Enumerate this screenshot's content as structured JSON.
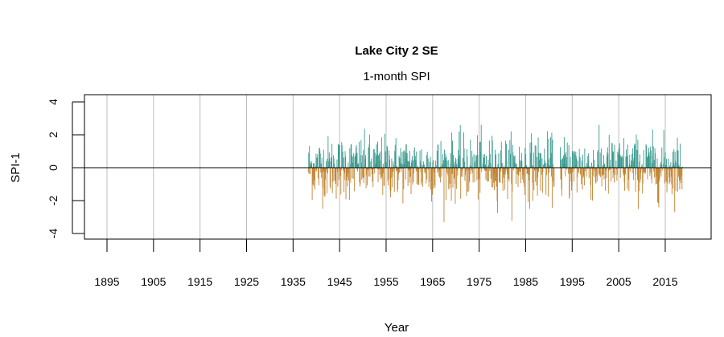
{
  "chart_data": {
    "type": "bar",
    "title": "Lake City 2 SE",
    "subtitle": "1-month SPI",
    "xlabel": "Year",
    "ylabel": "SPI-1",
    "xlim": [
      1890,
      2025
    ],
    "ylim": [
      -4.4,
      4.4
    ],
    "x_ticks": [
      "1895",
      "1905",
      "1915",
      "1925",
      "1935",
      "1945",
      "1955",
      "1965",
      "1975",
      "1985",
      "1995",
      "2005",
      "2015"
    ],
    "y_ticks": [
      "-4",
      "-2",
      "0",
      "2",
      "4"
    ],
    "grid": "vertical",
    "data_period": [
      1938,
      2018
    ],
    "data_gap": [
      1991,
      1992
    ],
    "value_range": [
      -3.9,
      2.6
    ],
    "colors": {
      "positive": "#3a9a8e",
      "negative": "#c08432",
      "grid": "#bebebe",
      "zero_line": "#000000"
    }
  }
}
